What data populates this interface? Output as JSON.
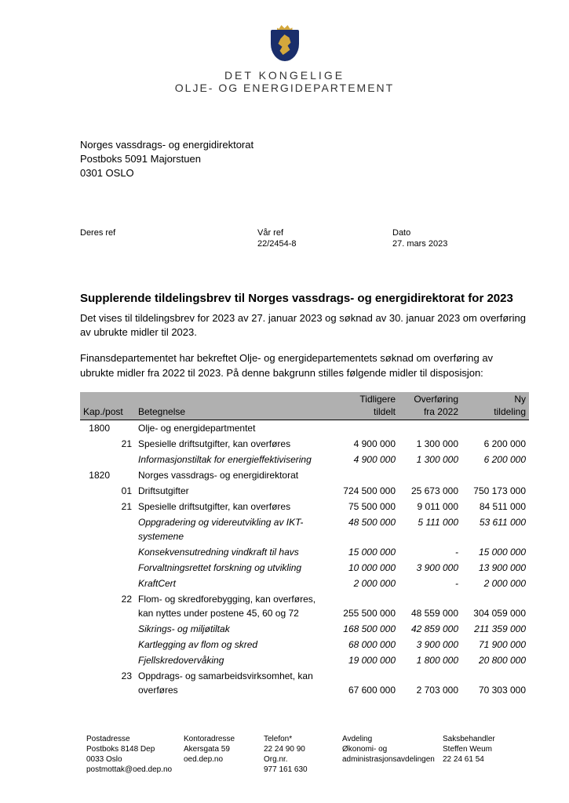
{
  "logo": {
    "line1": "DET KONGELIGE",
    "line2": "OLJE- OG ENERGIDEPARTEMENT",
    "crest_bg": "#1a2e6b",
    "crest_fg": "#d4a83c"
  },
  "recipient": {
    "l1": "Norges vassdrags- og energidirektorat",
    "l2": "Postboks 5091 Majorstuen",
    "l3": "0301 OSLO"
  },
  "refs": {
    "deres_label": "Deres ref",
    "deres_value": "",
    "vaar_label": "Vår ref",
    "vaar_value": "22/2454-8",
    "dato_label": "Dato",
    "dato_value": "27. mars 2023"
  },
  "title": "Supplerende tildelingsbrev til Norges vassdrags- og energidirektorat for 2023",
  "para1": "Det vises til tildelingsbrev for 2023 av 27. januar 2023 og søknad av 30. januar 2023 om overføring av ubrukte midler til 2023.",
  "para2": "Finansdepartementet har bekreftet Olje- og energidepartementets søknad om overføring av ubrukte midler fra 2022 til 2023. På denne bakgrunn stilles følgende midler til disposisjon:",
  "table": {
    "header_bg": "#b0b0b0",
    "head": {
      "kap": "Kap./post",
      "bet": "Betegnelse",
      "n1a": "Tidligere",
      "n1b": "tildelt",
      "n2a": "Overføring",
      "n2b": "fra 2022",
      "n3a": "Ny",
      "n3b": "tildeling"
    },
    "rows": [
      {
        "kap": "1800",
        "post": "",
        "bet": "Olje- og energidepartmentet",
        "n1": "",
        "n2": "",
        "n3": "",
        "it": false
      },
      {
        "kap": "",
        "post": "21",
        "bet": "Spesielle driftsutgifter, kan overføres",
        "n1": "4 900 000",
        "n2": "1 300 000",
        "n3": "6 200 000",
        "it": false
      },
      {
        "kap": "",
        "post": "",
        "bet": "Informasjonstiltak for energieffektivisering",
        "n1": "4 900 000",
        "n2": "1 300 000",
        "n3": "6 200 000",
        "it": true
      },
      {
        "kap": "1820",
        "post": "",
        "bet": "Norges vassdrags- og energidirektorat",
        "n1": "",
        "n2": "",
        "n3": "",
        "it": false
      },
      {
        "kap": "",
        "post": "01",
        "bet": "Driftsutgifter",
        "n1": "724 500 000",
        "n2": "25 673 000",
        "n3": "750 173 000",
        "it": false
      },
      {
        "kap": "",
        "post": "21",
        "bet": "Spesielle driftsutgifter, kan overføres",
        "n1": "75 500 000",
        "n2": "9 011 000",
        "n3": "84 511 000",
        "it": false
      },
      {
        "kap": "",
        "post": "",
        "bet": "Oppgradering og videreutvikling av IKT-systemene",
        "n1": "48 500 000",
        "n2": "5 111 000",
        "n3": "53 611 000",
        "it": true
      },
      {
        "kap": "",
        "post": "",
        "bet": "Konsekvensutredning vindkraft til havs",
        "n1": "15 000 000",
        "n2": "-",
        "n3": "15 000 000",
        "it": true
      },
      {
        "kap": "",
        "post": "",
        "bet": "Forvaltningsrettet forskning og utvikling",
        "n1": "10 000 000",
        "n2": "3 900 000",
        "n3": "13 900 000",
        "it": true
      },
      {
        "kap": "",
        "post": "",
        "bet": "KraftCert",
        "n1": "2 000 000",
        "n2": "-",
        "n3": "2 000 000",
        "it": true
      },
      {
        "kap": "",
        "post": "22",
        "bet": "Flom- og skredforebygging, kan overføres, kan nyttes under postene 45, 60 og 72",
        "n1": "255 500 000",
        "n2": "48 559 000",
        "n3": "304 059 000",
        "it": false,
        "two": true
      },
      {
        "kap": "",
        "post": "",
        "bet": "Sikrings- og miljøtiltak",
        "n1": "168 500 000",
        "n2": "42 859 000",
        "n3": "211 359 000",
        "it": true
      },
      {
        "kap": "",
        "post": "",
        "bet": "Kartlegging av flom og skred",
        "n1": "68 000 000",
        "n2": "3 900 000",
        "n3": "71 900 000",
        "it": true
      },
      {
        "kap": "",
        "post": "",
        "bet": "Fjellskredovervåking",
        "n1": "19 000 000",
        "n2": "1 800 000",
        "n3": "20 800 000",
        "it": true
      },
      {
        "kap": "",
        "post": "23",
        "bet": "Oppdrags- og samarbeidsvirksomhet, kan overføres",
        "n1": "67 600 000",
        "n2": "2 703 000",
        "n3": "70 303 000",
        "it": false,
        "two": true
      }
    ]
  },
  "footer": {
    "c1": {
      "l1": "Postadresse",
      "l2": "Postboks 8148 Dep",
      "l3": "0033 Oslo",
      "l4": "postmottak@oed.dep.no"
    },
    "c2": {
      "l1": "Kontoradresse",
      "l2": "Akersgata 59",
      "l3": "",
      "l4": "oed.dep.no"
    },
    "c3": {
      "l1": "Telefon*",
      "l2": "22 24 90 90",
      "l3": "Org.nr.",
      "l4": "977 161 630"
    },
    "c4": {
      "l1": "Avdeling",
      "l2": "Økonomi- og",
      "l3": "administrasjonsavdelingen",
      "l4": ""
    },
    "c5": {
      "l1": "Saksbehandler",
      "l2": "Steffen Weum",
      "l3": "22 24 61 54",
      "l4": ""
    }
  }
}
